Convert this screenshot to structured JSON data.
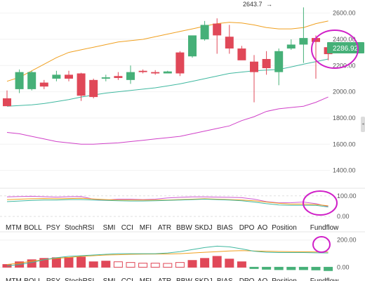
{
  "chart_data": [
    {
      "type": "candlestick",
      "panel": "main",
      "y_ticks": [
        "2600.00",
        "2400.00",
        "2200.00",
        "2000.00",
        "1800.00",
        "1600.00",
        "1400.00"
      ],
      "y_tick_values": [
        2600,
        2400,
        2200,
        2000,
        1800,
        1600,
        1400
      ],
      "ylim": [
        1280,
        2700
      ],
      "annotations": {
        "high_label": "2643.7",
        "last_price": "2286.92"
      },
      "candles": [
        {
          "o": 1950,
          "h": 2010,
          "l": 1900,
          "c": 1890
        },
        {
          "o": 2020,
          "h": 2170,
          "l": 1990,
          "c": 2150
        },
        {
          "o": 2020,
          "h": 2160,
          "l": 2010,
          "c": 2150
        },
        {
          "o": 2070,
          "h": 2090,
          "l": 2020,
          "c": 2040
        },
        {
          "o": 2100,
          "h": 2160,
          "l": 2080,
          "c": 2130
        },
        {
          "o": 2130,
          "h": 2160,
          "l": 2080,
          "c": 2100
        },
        {
          "o": 2140,
          "h": 2145,
          "l": 1930,
          "c": 1970
        },
        {
          "o": 2090,
          "h": 2100,
          "l": 1950,
          "c": 1960
        },
        {
          "o": 2100,
          "h": 2130,
          "l": 2080,
          "c": 2110
        },
        {
          "o": 2120,
          "h": 2150,
          "l": 2090,
          "c": 2105
        },
        {
          "o": 2090,
          "h": 2200,
          "l": 2060,
          "c": 2150
        },
        {
          "o": 2160,
          "h": 2170,
          "l": 2140,
          "c": 2150
        },
        {
          "o": 2150,
          "h": 2165,
          "l": 2130,
          "c": 2140
        },
        {
          "o": 2140,
          "h": 2160,
          "l": 2140,
          "c": 2155
        },
        {
          "o": 2300,
          "h": 2310,
          "l": 2120,
          "c": 2140
        },
        {
          "o": 2270,
          "h": 2420,
          "l": 2260,
          "c": 2430
        },
        {
          "o": 2400,
          "h": 2540,
          "l": 2390,
          "c": 2510
        },
        {
          "o": 2520,
          "h": 2560,
          "l": 2290,
          "c": 2430
        },
        {
          "o": 2420,
          "h": 2510,
          "l": 2290,
          "c": 2330
        },
        {
          "o": 2330,
          "h": 2350,
          "l": 2250,
          "c": 2240
        },
        {
          "o": 2230,
          "h": 2280,
          "l": 1920,
          "c": 2150
        },
        {
          "o": 2250,
          "h": 2310,
          "l": 2130,
          "c": 2180
        },
        {
          "o": 2150,
          "h": 2330,
          "l": 2050,
          "c": 2310
        },
        {
          "o": 2330,
          "h": 2400,
          "l": 2320,
          "c": 2360
        },
        {
          "o": 2360,
          "h": 2643.7,
          "l": 2220,
          "c": 2410
        },
        {
          "o": 2410,
          "h": 2430,
          "l": 2100,
          "c": 2380
        },
        {
          "o": 2340,
          "h": 2350,
          "l": 2240,
          "c": 2287
        }
      ],
      "bands": {
        "upper": [
          2080,
          2110,
          2160,
          2210,
          2260,
          2300,
          2320,
          2340,
          2360,
          2380,
          2390,
          2400,
          2420,
          2440,
          2460,
          2480,
          2500,
          2520,
          2530,
          2525,
          2510,
          2490,
          2480,
          2480,
          2490,
          2520,
          2540
        ],
        "middle": [
          1890,
          1895,
          1900,
          1910,
          1925,
          1940,
          1960,
          1975,
          1990,
          2000,
          2010,
          2020,
          2030,
          2045,
          2060,
          2080,
          2100,
          2120,
          2140,
          2150,
          2160,
          2165,
          2170,
          2190,
          2210,
          2230,
          2250
        ],
        "lower": [
          1690,
          1680,
          1660,
          1640,
          1620,
          1610,
          1600,
          1600,
          1605,
          1610,
          1620,
          1630,
          1640,
          1650,
          1660,
          1680,
          1700,
          1720,
          1740,
          1780,
          1810,
          1850,
          1870,
          1880,
          1890,
          1920,
          1960
        ]
      }
    },
    {
      "type": "line",
      "panel": "indicator",
      "y_ticks": [
        "100.00",
        "0.00"
      ],
      "y_tick_values": [
        100,
        0
      ],
      "ylim": [
        -20,
        130
      ],
      "series": [
        {
          "color": "#d05ad0",
          "values": [
            95,
            97,
            98,
            96,
            94,
            96,
            97,
            84,
            80,
            84,
            84,
            82,
            84,
            90,
            93,
            95,
            95,
            94,
            93,
            91,
            84,
            72,
            66,
            67,
            70,
            62,
            48
          ]
        },
        {
          "color": "#f0a020",
          "values": [
            82,
            84,
            86,
            87,
            86,
            87,
            88,
            85,
            82,
            80,
            80,
            80,
            80,
            80,
            82,
            84,
            86,
            84,
            82,
            80,
            76,
            70,
            64,
            60,
            60,
            58,
            52
          ]
        },
        {
          "color": "#40b8a0",
          "values": [
            72,
            75,
            78,
            80,
            80,
            82,
            82,
            80,
            78,
            76,
            75,
            75,
            76,
            78,
            80,
            82,
            84,
            82,
            80,
            76,
            70,
            62,
            56,
            54,
            54,
            54,
            46
          ]
        }
      ]
    },
    {
      "type": "bar",
      "panel": "macd",
      "y_ticks": [
        "200.00",
        "0.00"
      ],
      "y_tick_values": [
        200,
        0
      ],
      "ylim": [
        -60,
        240
      ],
      "histogram": [
        20,
        40,
        55,
        65,
        70,
        72,
        75,
        40,
        45,
        40,
        35,
        30,
        30,
        28,
        35,
        50,
        65,
        80,
        60,
        40,
        -10,
        -15,
        -18,
        -18,
        -18,
        -20,
        -25
      ],
      "series": [
        {
          "color": "#f0a020",
          "values": [
            20,
            30,
            45,
            55,
            65,
            72,
            80,
            85,
            90,
            92,
            95,
            96,
            97,
            98,
            100,
            105,
            110,
            115,
            120,
            122,
            120,
            118,
            116,
            115,
            114,
            113,
            112
          ]
        },
        {
          "color": "#40b8a0",
          "values": [
            10,
            20,
            35,
            55,
            70,
            80,
            85,
            90,
            95,
            100,
            100,
            100,
            100,
            105,
            115,
            130,
            145,
            155,
            150,
            135,
            118,
            110,
            108,
            108,
            108,
            106,
            105
          ]
        }
      ]
    }
  ],
  "tabs_row1": [
    "MTM",
    "BOLL",
    "PSY",
    "StochRSI",
    "SMI",
    "CCI",
    "MFI",
    "ATR",
    "BBW",
    "SKDJ",
    "BIAS",
    "DPO",
    "AO",
    "Position",
    "Fundflow"
  ],
  "tabs_row2": [
    "MTM",
    "BOLL",
    "PSY",
    "StochRSI",
    "SMI",
    "CCI",
    "MFI",
    "ATR",
    "BBW",
    "SKDJ",
    "BIAS",
    "DPO",
    "AO",
    "Position",
    "Fundflow"
  ],
  "colors": {
    "up": "#46b078",
    "down": "#e04858",
    "upper": "#f0a020",
    "middle": "#40b8a0",
    "lower": "#d040c8",
    "highlight": "#d020c8"
  }
}
